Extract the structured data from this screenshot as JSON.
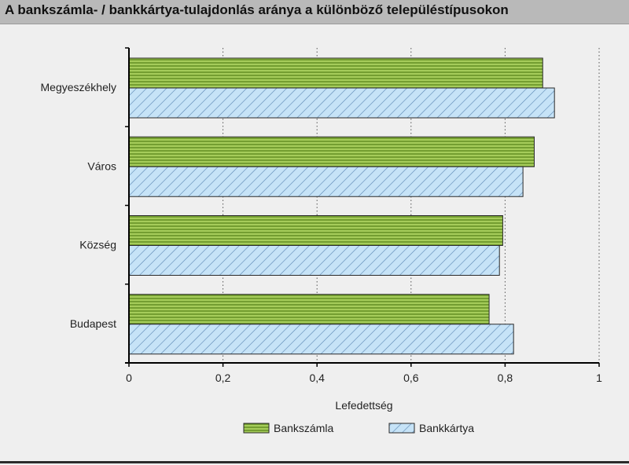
{
  "title": "A bankszámla- / bankkártya-tulajdonlás aránya a különböző településtípusokon",
  "colors": {
    "bankszamla_fill": "#a5cc5a",
    "bankszamla_line": "#5f8a1f",
    "bankkartya_fill": "#c6e3f7",
    "bankkartya_line": "#5a86b3",
    "background": "#efefef",
    "title_bg": "#b9b9b9"
  },
  "chart_data": {
    "type": "bar",
    "orientation": "horizontal",
    "categories": [
      "Megyeszékhely",
      "Város",
      "Község",
      "Budapest"
    ],
    "series": [
      {
        "name": "Bankszámla",
        "values": [
          0.88,
          0.862,
          0.795,
          0.766
        ]
      },
      {
        "name": "Bankkártya",
        "values": [
          0.905,
          0.838,
          0.788,
          0.818
        ]
      }
    ],
    "xlabel": "Lefedettség",
    "ylabel": "",
    "xlim": [
      0,
      1
    ],
    "xticks": [
      0,
      0.2,
      0.4,
      0.6,
      0.8,
      1
    ],
    "xtick_labels": [
      "0",
      "0,2",
      "0,4",
      "0,6",
      "0,8",
      "1"
    ],
    "grid": "vertical-dotted",
    "legend": "bottom"
  }
}
